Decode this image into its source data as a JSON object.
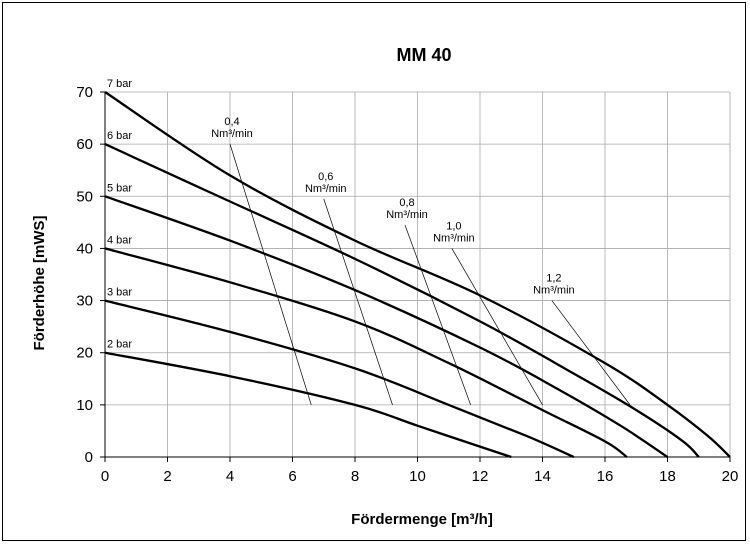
{
  "chart_data": {
    "type": "line",
    "title": "MM 40",
    "xlabel": "Fördermenge [m³/h]",
    "ylabel": "Förderhöhe [mWS]",
    "xlim": [
      0,
      20
    ],
    "ylim": [
      0,
      70
    ],
    "x_ticks": [
      "0",
      "2",
      "4",
      "6",
      "8",
      "10",
      "12",
      "14",
      "16",
      "18",
      "20"
    ],
    "y_ticks": [
      "0",
      "10",
      "20",
      "30",
      "40",
      "50",
      "60",
      "70"
    ],
    "grid": true,
    "series": [
      {
        "name": "7 bar",
        "points": [
          [
            0,
            70
          ],
          [
            4,
            54
          ],
          [
            8,
            41.5
          ],
          [
            12,
            31
          ],
          [
            16,
            18
          ],
          [
            18,
            10
          ],
          [
            19.3,
            4
          ],
          [
            20,
            0
          ]
        ]
      },
      {
        "name": "6 bar",
        "points": [
          [
            0,
            60
          ],
          [
            4,
            49
          ],
          [
            8,
            38
          ],
          [
            12,
            26
          ],
          [
            15,
            16
          ],
          [
            17,
            9
          ],
          [
            18.5,
            3
          ],
          [
            19,
            0
          ]
        ]
      },
      {
        "name": "5 bar",
        "points": [
          [
            0,
            50
          ],
          [
            4,
            41.5
          ],
          [
            8,
            32
          ],
          [
            12,
            21
          ],
          [
            14.5,
            13
          ],
          [
            16.5,
            6
          ],
          [
            18,
            0
          ]
        ]
      },
      {
        "name": "4 bar",
        "points": [
          [
            0,
            40
          ],
          [
            4,
            33.5
          ],
          [
            8,
            26
          ],
          [
            11,
            18
          ],
          [
            14,
            9
          ],
          [
            16,
            3
          ],
          [
            16.7,
            0
          ]
        ]
      },
      {
        "name": "3 bar",
        "points": [
          [
            0,
            30
          ],
          [
            4,
            24
          ],
          [
            8,
            17
          ],
          [
            11,
            10
          ],
          [
            13.5,
            4
          ],
          [
            15,
            0
          ]
        ]
      },
      {
        "name": "2 bar",
        "points": [
          [
            0,
            20
          ],
          [
            4,
            15.5
          ],
          [
            8,
            10
          ],
          [
            10,
            6
          ],
          [
            12,
            2
          ],
          [
            13,
            0
          ]
        ]
      }
    ],
    "flow_lines": [
      {
        "label_line1": "0,4",
        "label_line2": "Nm³/min",
        "points": [
          [
            4,
            60
          ],
          [
            6.6,
            10
          ]
        ]
      },
      {
        "label_line1": "0,6",
        "label_line2": "Nm³/min",
        "points": [
          [
            7,
            49.5
          ],
          [
            9.2,
            10
          ]
        ]
      },
      {
        "label_line1": "0,8",
        "label_line2": "Nm³/min",
        "points": [
          [
            9.6,
            44.5
          ],
          [
            11.7,
            10
          ]
        ]
      },
      {
        "label_line1": "1,0",
        "label_line2": "Nm³/min",
        "points": [
          [
            11.1,
            40
          ],
          [
            14,
            10
          ]
        ]
      },
      {
        "label_line1": "1,2",
        "label_line2": "Nm³/min",
        "points": [
          [
            14.3,
            30
          ],
          [
            16.8,
            10
          ]
        ]
      }
    ]
  }
}
